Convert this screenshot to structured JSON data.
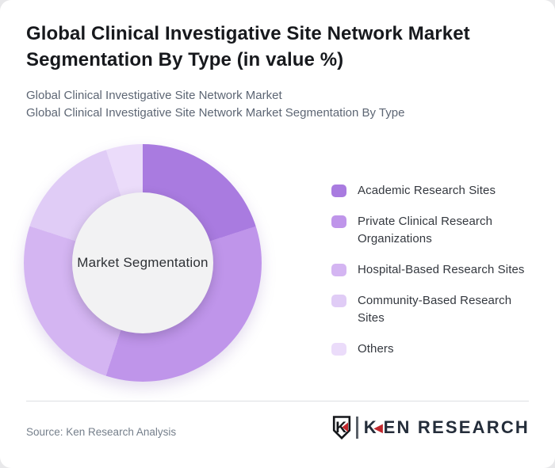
{
  "header": {
    "title": "Global Clinical Investigative Site Network Market Segmentation By Type (in value %)",
    "subtitle_line1": "Global Clinical Investigative Site Network Market",
    "subtitle_line2": "Global Clinical Investigative Site Network Market Segmentation By Type"
  },
  "chart_data": {
    "type": "pie",
    "variant": "donut",
    "title": "Global Clinical Investigative Site Network Market Segmentation By Type (in value %)",
    "center_label": "Market Segmentation",
    "unit": "value %",
    "categories": [
      "Academic Research Sites",
      "Private Clinical Research Organizations",
      "Hospital-Based Research Sites",
      "Community-Based Research Sites",
      "Others"
    ],
    "values": [
      20,
      35,
      25,
      15,
      5
    ],
    "colors": [
      "#a97be0",
      "#bf95ea",
      "#d4b5f2",
      "#e0ccf6",
      "#ebdcfa"
    ],
    "legend_wrap": [
      [
        "Academic Research Sites"
      ],
      [
        "Private Clinical Research",
        "Organizations"
      ],
      [
        "Hospital-Based Research Sites"
      ],
      [
        "Community-Based Research",
        "Sites"
      ],
      [
        "Others"
      ]
    ],
    "start_angle_deg": 0,
    "direction": "clockwise",
    "legend_position": "right",
    "data_labels_shown": false,
    "inner_circle_color": "#f2f2f3"
  },
  "footer": {
    "source": "Source: Ken Research Analysis",
    "logo": {
      "badge_letter": "K",
      "red_triangle_glyph": "◀",
      "brand_prefix": "K",
      "brand_suffix": "EN RESEARCH",
      "accent_color": "#c1272d",
      "text_color": "#242d3a"
    }
  }
}
